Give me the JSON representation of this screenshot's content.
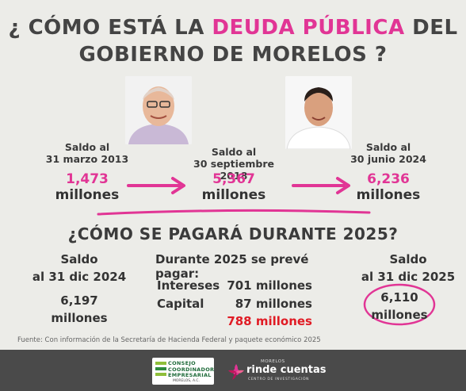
{
  "title": {
    "line1_pre": "¿ CÓMO ESTÁ LA ",
    "line1_highlight": "DEUDA PÚBLICA",
    "line1_post": " DEL",
    "line2": "GOBIERNO DE MORELOS ?"
  },
  "timeline": [
    {
      "label1": "Saldo al",
      "label2": "31 marzo 2013",
      "amount": "1,473",
      "unit": "millones"
    },
    {
      "label1": "Saldo al",
      "label2": "30 septiembre 2018",
      "amount": "5,367",
      "unit": "millones"
    },
    {
      "label1": "Saldo al",
      "label2": "30 junio 2024",
      "amount": "6,236",
      "unit": "millones"
    }
  ],
  "section2": {
    "title": "¿CÓMO SE PAGARÁ DURANTE 2025?",
    "left": {
      "line1": "Saldo",
      "line2": "al 31 dic 2024",
      "amount": "6,197",
      "unit": "millones"
    },
    "middle": {
      "heading": "Durante 2025 se prevé pagar:",
      "rows": [
        {
          "label": "Intereses",
          "value": "701 millones"
        },
        {
          "label": "Capital",
          "value": "87 millones"
        }
      ],
      "total": "788 millones"
    },
    "right": {
      "line1": "Saldo",
      "line2": "al 31 dic 2025",
      "amount": "6,110",
      "unit": "millones"
    }
  },
  "source": "Fuente: Con información de la Secretaría de Hacienda Federal y paquete económico 2025",
  "footer": {
    "logo1": {
      "line1": "CONSEJO",
      "line2": "COORDINADOR",
      "line3": "EMPRESARIAL",
      "sub": "MORELOS, A.C."
    },
    "logo2": {
      "top": "MORELOS",
      "main": "rinde cuentas",
      "sub": "CENTRO DE INVESTIGACIÓN"
    }
  },
  "colors": {
    "accent": "#e13595",
    "red": "#e01b24",
    "footer": "#4a4a4a",
    "background": "#ecece8"
  }
}
